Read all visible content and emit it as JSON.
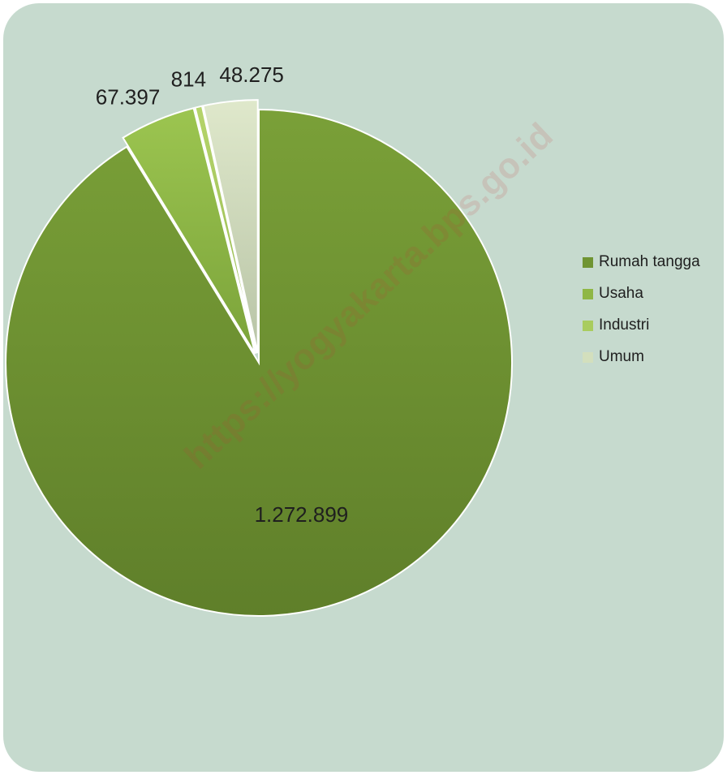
{
  "chart_data": {
    "type": "pie",
    "categories": [
      "Rumah tangga",
      "Usaha",
      "Industri",
      "Umum"
    ],
    "values": [
      1272899,
      67397,
      814,
      48275
    ],
    "value_labels": [
      "1.272.899",
      "67.397",
      "814",
      "48.275"
    ],
    "colors": [
      "#6f9432",
      "#8fb745",
      "#a9cc5e",
      "#d3dfbd"
    ],
    "exploded": [
      false,
      true,
      true,
      true
    ],
    "legend_position": "right",
    "title": ""
  },
  "watermark": "https://yogyakarta.bps.go.id",
  "colors": {
    "background": "#c6dace"
  }
}
